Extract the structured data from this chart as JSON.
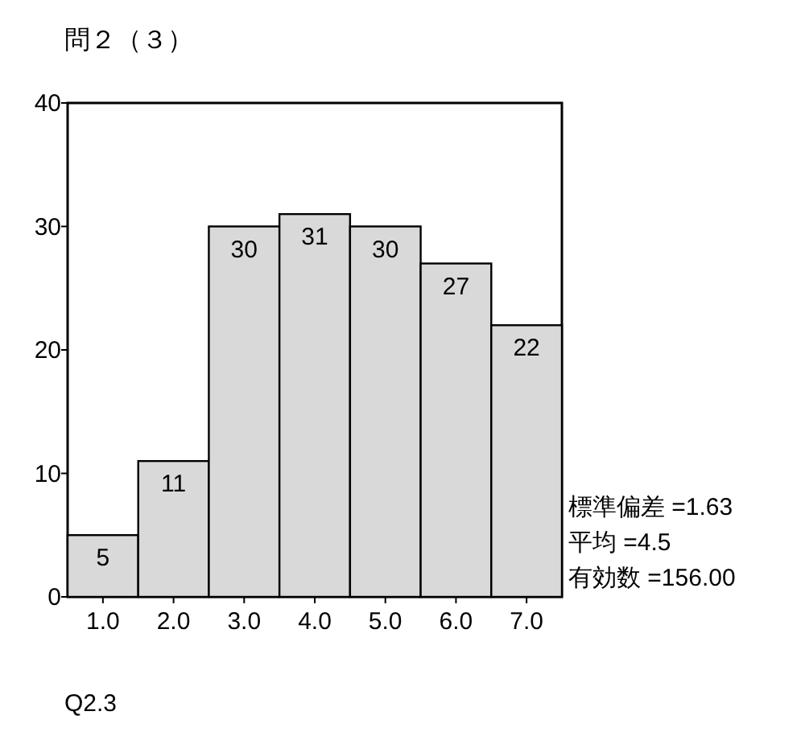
{
  "chart_data": {
    "type": "histogram",
    "title": "問２（３）",
    "bins": [
      0.5,
      1.5,
      2.5,
      3.5,
      4.5,
      5.5,
      6.5,
      7.5
    ],
    "values": [
      5,
      11,
      30,
      31,
      30,
      27,
      22
    ],
    "color": "#d9d9d9",
    "xlim": [
      0.5,
      7.5
    ],
    "xticks": [
      {
        "value": 1,
        "label": "1.0"
      },
      {
        "value": 2,
        "label": "2.0"
      },
      {
        "value": 3,
        "label": "3.0"
      },
      {
        "value": 4,
        "label": "4.0"
      },
      {
        "value": 5,
        "label": "5.0"
      },
      {
        "value": 6,
        "label": "6.0"
      },
      {
        "value": 7,
        "label": "7.0"
      }
    ],
    "ylim": [
      0,
      40
    ],
    "yticks": [
      0,
      10,
      20,
      30,
      40
    ],
    "data_labels": true,
    "grid": false,
    "annotations": [
      "標準偏差 =1.63",
      "平均 =4.5",
      "有効数 =156.00",
      "Q2.3"
    ]
  }
}
